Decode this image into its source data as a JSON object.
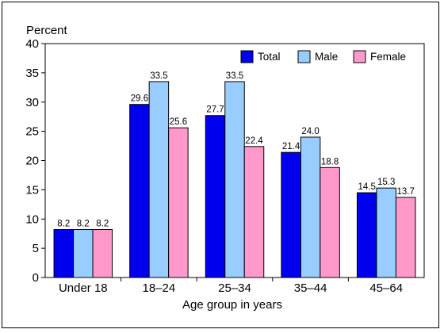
{
  "chart_data": {
    "type": "bar",
    "ylabel": "Percent",
    "xlabel": "Age group in years",
    "ylim": [
      0,
      40
    ],
    "yticks": [
      0,
      5,
      10,
      15,
      20,
      25,
      30,
      35,
      40
    ],
    "grid": false,
    "legend_position": "top-right",
    "categories": [
      "Under 18",
      "18–24",
      "25–34",
      "35–44",
      "45–64"
    ],
    "series": [
      {
        "name": "Total",
        "color": "#0000ee",
        "values": [
          8.2,
          29.6,
          27.7,
          21.4,
          14.5
        ]
      },
      {
        "name": "Male",
        "color": "#99ccff",
        "values": [
          8.2,
          33.5,
          33.5,
          24.0,
          15.3
        ]
      },
      {
        "name": "Female",
        "color": "#ff99cc",
        "values": [
          8.2,
          25.6,
          22.4,
          18.8,
          13.7
        ]
      }
    ]
  }
}
